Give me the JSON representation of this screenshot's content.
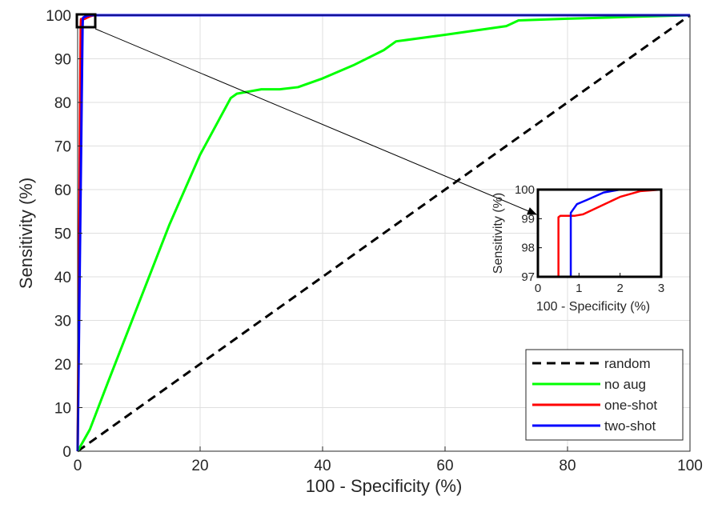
{
  "chart_data": [
    {
      "type": "line",
      "title": "",
      "xlabel": "100 - Specificity (%)",
      "ylabel": "Sensitivity (%)",
      "xlim": [
        0,
        100
      ],
      "ylim": [
        0,
        100
      ],
      "xticks": [
        0,
        20,
        40,
        60,
        80,
        100
      ],
      "yticks": [
        0,
        10,
        20,
        30,
        40,
        50,
        60,
        70,
        80,
        90,
        100
      ],
      "grid": true,
      "legend_position": "bottom-right",
      "series": [
        {
          "name": "random",
          "color": "#000000",
          "style": "dashed",
          "x": [
            0,
            100
          ],
          "y": [
            0,
            100
          ]
        },
        {
          "name": "no aug",
          "color": "#00ff00",
          "style": "solid",
          "x": [
            0,
            2,
            5,
            10,
            15,
            20,
            25,
            26,
            30,
            33,
            36,
            40,
            45,
            50,
            52,
            60,
            70,
            72,
            80,
            90,
            100
          ],
          "y": [
            0,
            5,
            16,
            34,
            52,
            68,
            81,
            82,
            83,
            83,
            83.5,
            85.5,
            88.5,
            92,
            94,
            95.5,
            97.5,
            98.8,
            99.2,
            99.6,
            100
          ]
        },
        {
          "name": "one-shot",
          "color": "#ff0000",
          "style": "solid",
          "x": [
            0,
            0.5,
            0.55,
            0.9,
            1.1,
            1.4,
            2.0,
            2.5,
            3.0,
            100
          ],
          "y": [
            0,
            97,
            99.1,
            99.1,
            99.15,
            99.35,
            99.75,
            99.95,
            100,
            100
          ]
        },
        {
          "name": "two-shot",
          "color": "#0000ff",
          "style": "solid",
          "x": [
            0,
            0.8,
            0.85,
            0.95,
            1.2,
            1.6,
            2.0,
            3.0,
            100
          ],
          "y": [
            0,
            97,
            99.3,
            99.5,
            99.65,
            99.9,
            100,
            100,
            100
          ]
        }
      ]
    },
    {
      "type": "line",
      "title": "",
      "xlabel": "100 - Specificity (%)",
      "ylabel": "Sensitivity (%)",
      "xlim": [
        0,
        3
      ],
      "ylim": [
        97,
        100
      ],
      "xticks": [
        0,
        1,
        2,
        3
      ],
      "yticks": [
        97,
        98,
        99,
        100
      ],
      "grid": false,
      "inset_of": "main",
      "zoom_region": {
        "x": [
          0,
          3
        ],
        "y": [
          97,
          100
        ]
      },
      "series": [
        {
          "name": "one-shot",
          "color": "#ff0000",
          "x": [
            0.5,
            0.5,
            0.55,
            0.9,
            1.1,
            1.4,
            2.0,
            2.5,
            3.0
          ],
          "y": [
            97,
            99.05,
            99.1,
            99.1,
            99.15,
            99.35,
            99.75,
            99.95,
            100
          ]
        },
        {
          "name": "two-shot",
          "color": "#0000ff",
          "x": [
            0.8,
            0.8,
            0.85,
            0.95,
            1.2,
            1.6,
            2.0,
            2.5,
            3.0
          ],
          "y": [
            97,
            99.2,
            99.3,
            99.5,
            99.65,
            99.9,
            100,
            100,
            100
          ]
        }
      ]
    }
  ]
}
